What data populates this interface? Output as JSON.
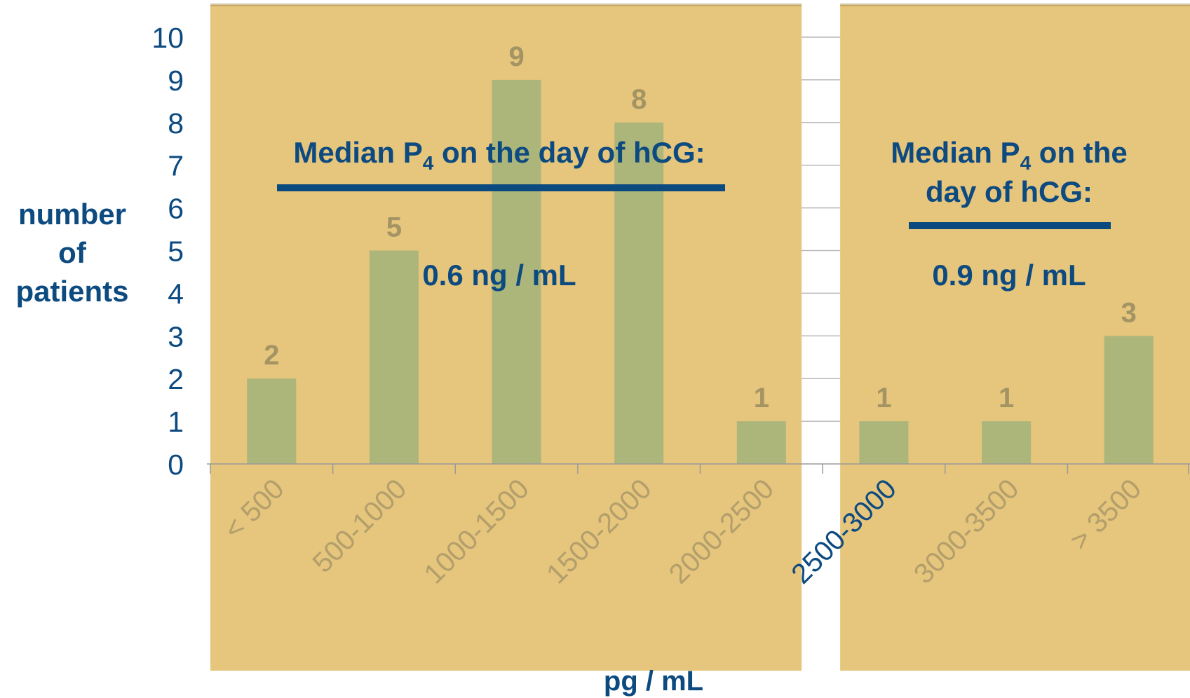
{
  "chart_data": {
    "type": "bar",
    "categories": [
      "< 500",
      "500-1000",
      "1000-1500",
      "1500-2000",
      "2000-2500",
      "2500-3000",
      "3000-3500",
      "> 3500"
    ],
    "values": [
      2,
      5,
      9,
      8,
      1,
      1,
      1,
      3
    ],
    "data_labels": [
      "2",
      "5",
      "9",
      "8",
      "1",
      "1",
      "1",
      "3"
    ],
    "ylabel_lines": [
      "number",
      "of",
      "patients"
    ],
    "xlabel": "pg / mL",
    "ylim": [
      0,
      10
    ],
    "yticks": [
      "0",
      "1",
      "2",
      "3",
      "4",
      "5",
      "6",
      "7",
      "8",
      "9",
      "10"
    ],
    "grid": true,
    "colors": {
      "bar": "#adb67a",
      "panel": "#e6c57c",
      "text": "#0c4a80",
      "value_label": "#a49463",
      "gridline": "#b9b9b9",
      "underline": "#0a4a7e"
    },
    "annotations": [
      {
        "lines": [
          {
            "prefix": "Median P",
            "subscript": "4",
            "suffix": " on the day of hCG:"
          }
        ],
        "value": "0.6 ng / mL"
      },
      {
        "lines": [
          {
            "prefix": "Median P",
            "subscript": "4",
            "suffix": " on the"
          },
          {
            "prefix": "day of hCG:",
            "subscript": "",
            "suffix": ""
          }
        ],
        "value": "0.9 ng / mL"
      }
    ]
  }
}
